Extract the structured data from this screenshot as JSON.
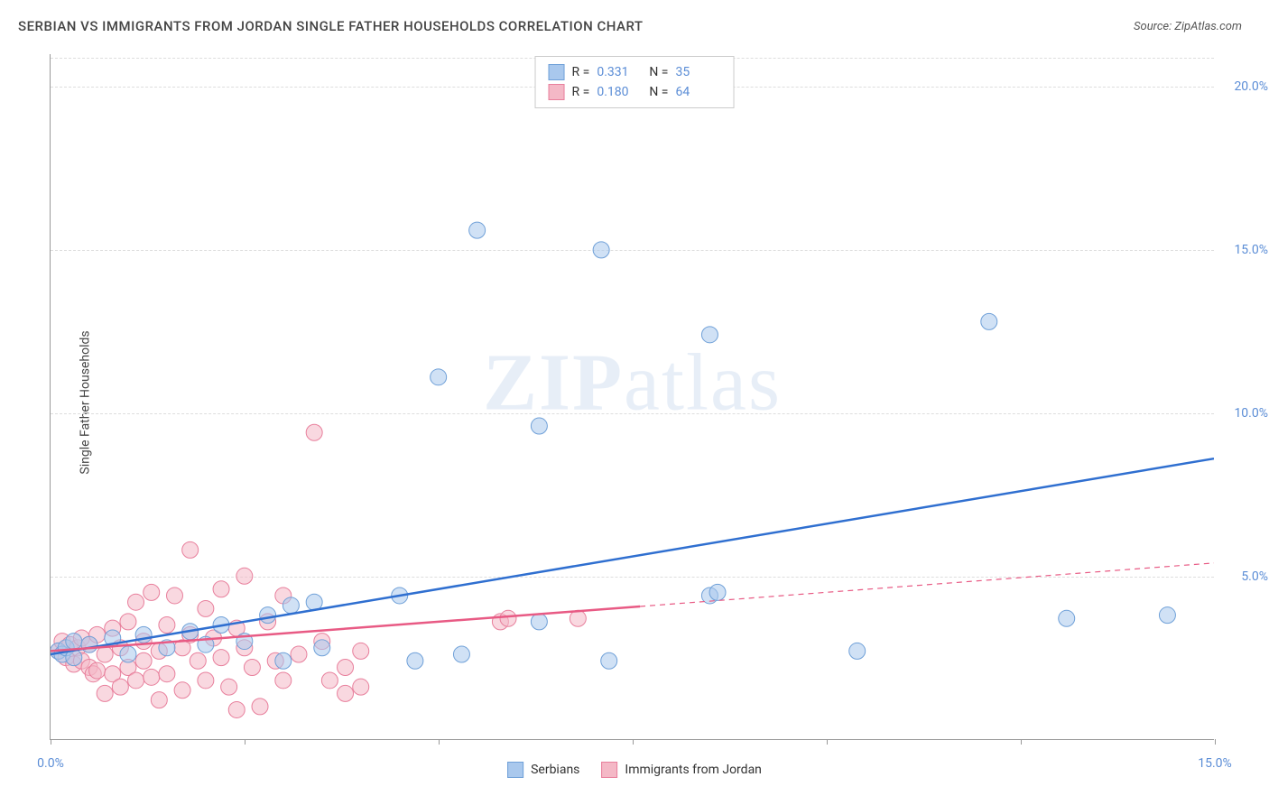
{
  "title": "SERBIAN VS IMMIGRANTS FROM JORDAN SINGLE FATHER HOUSEHOLDS CORRELATION CHART",
  "source_label": "Source: ZipAtlas.com",
  "y_axis_label": "Single Father Households",
  "watermark": {
    "bold": "ZIP",
    "light": "atlas"
  },
  "chart": {
    "type": "scatter",
    "background_color": "#ffffff",
    "grid_color": "#dddddd",
    "axis_color": "#999999",
    "xlim": [
      0,
      15
    ],
    "ylim": [
      0,
      21
    ],
    "x_ticks": [
      0,
      2.5,
      5,
      7.5,
      10,
      12.5,
      15
    ],
    "x_tick_labels": [
      "0.0%",
      "",
      "",
      "",
      "",
      "",
      "15.0%"
    ],
    "y_ticks": [
      5,
      10,
      15,
      20
    ],
    "y_tick_labels": [
      "5.0%",
      "10.0%",
      "15.0%",
      "20.0%"
    ],
    "marker_radius": 9,
    "marker_opacity": 0.55,
    "line_width": 2.5,
    "series": [
      {
        "name": "Serbians",
        "color_fill": "#a9c8ed",
        "color_stroke": "#6fa0d8",
        "line_color": "#2f6fd0",
        "r_value": "0.331",
        "n_value": "35",
        "regression": {
          "x1": 0,
          "y1": 2.6,
          "x2": 15,
          "y2": 8.6,
          "dashed_from": null
        },
        "points": [
          [
            0.1,
            2.7
          ],
          [
            0.15,
            2.6
          ],
          [
            0.2,
            2.8
          ],
          [
            0.3,
            2.5
          ],
          [
            0.3,
            3.0
          ],
          [
            0.5,
            2.9
          ],
          [
            0.8,
            3.1
          ],
          [
            1.0,
            2.6
          ],
          [
            1.2,
            3.2
          ],
          [
            1.5,
            2.8
          ],
          [
            1.8,
            3.3
          ],
          [
            2.0,
            2.9
          ],
          [
            2.2,
            3.5
          ],
          [
            2.5,
            3.0
          ],
          [
            2.8,
            3.8
          ],
          [
            3.0,
            2.4
          ],
          [
            3.1,
            4.1
          ],
          [
            3.4,
            4.2
          ],
          [
            3.5,
            2.8
          ],
          [
            4.5,
            4.4
          ],
          [
            4.7,
            2.4
          ],
          [
            5.0,
            11.1
          ],
          [
            5.3,
            2.6
          ],
          [
            5.5,
            15.6
          ],
          [
            6.3,
            3.6
          ],
          [
            6.3,
            9.6
          ],
          [
            7.1,
            15.0
          ],
          [
            7.2,
            2.4
          ],
          [
            8.5,
            12.4
          ],
          [
            8.5,
            4.4
          ],
          [
            8.6,
            4.5
          ],
          [
            10.4,
            2.7
          ],
          [
            12.1,
            12.8
          ],
          [
            13.1,
            3.7
          ],
          [
            14.4,
            3.8
          ]
        ]
      },
      {
        "name": "Immigrants from Jordan",
        "color_fill": "#f4b8c6",
        "color_stroke": "#e87f9c",
        "line_color": "#e85a84",
        "r_value": "0.180",
        "n_value": "64",
        "regression": {
          "x1": 0,
          "y1": 2.7,
          "x2": 15,
          "y2": 5.4,
          "dashed_from": 7.6
        },
        "points": [
          [
            0.1,
            2.7
          ],
          [
            0.15,
            3.0
          ],
          [
            0.2,
            2.5
          ],
          [
            0.25,
            2.9
          ],
          [
            0.3,
            2.3
          ],
          [
            0.35,
            2.8
          ],
          [
            0.4,
            2.4
          ],
          [
            0.4,
            3.1
          ],
          [
            0.5,
            2.2
          ],
          [
            0.5,
            2.9
          ],
          [
            0.55,
            2.0
          ],
          [
            0.6,
            3.2
          ],
          [
            0.6,
            2.1
          ],
          [
            0.7,
            2.6
          ],
          [
            0.7,
            1.4
          ],
          [
            0.8,
            3.4
          ],
          [
            0.8,
            2.0
          ],
          [
            0.9,
            2.8
          ],
          [
            0.9,
            1.6
          ],
          [
            1.0,
            3.6
          ],
          [
            1.0,
            2.2
          ],
          [
            1.1,
            4.2
          ],
          [
            1.1,
            1.8
          ],
          [
            1.2,
            3.0
          ],
          [
            1.2,
            2.4
          ],
          [
            1.3,
            4.5
          ],
          [
            1.3,
            1.9
          ],
          [
            1.4,
            2.7
          ],
          [
            1.4,
            1.2
          ],
          [
            1.5,
            3.5
          ],
          [
            1.5,
            2.0
          ],
          [
            1.6,
            4.4
          ],
          [
            1.7,
            2.8
          ],
          [
            1.7,
            1.5
          ],
          [
            1.8,
            3.2
          ],
          [
            1.8,
            5.8
          ],
          [
            1.9,
            2.4
          ],
          [
            2.0,
            4.0
          ],
          [
            2.0,
            1.8
          ],
          [
            2.1,
            3.1
          ],
          [
            2.2,
            2.5
          ],
          [
            2.2,
            4.6
          ],
          [
            2.3,
            1.6
          ],
          [
            2.4,
            3.4
          ],
          [
            2.4,
            0.9
          ],
          [
            2.5,
            2.8
          ],
          [
            2.5,
            5.0
          ],
          [
            2.6,
            2.2
          ],
          [
            2.7,
            1.0
          ],
          [
            2.8,
            3.6
          ],
          [
            2.9,
            2.4
          ],
          [
            3.0,
            4.4
          ],
          [
            3.0,
            1.8
          ],
          [
            3.2,
            2.6
          ],
          [
            3.4,
            9.4
          ],
          [
            3.5,
            3.0
          ],
          [
            3.6,
            1.8
          ],
          [
            3.8,
            2.2
          ],
          [
            3.8,
            1.4
          ],
          [
            4.0,
            2.7
          ],
          [
            4.0,
            1.6
          ],
          [
            5.8,
            3.6
          ],
          [
            5.9,
            3.7
          ],
          [
            6.8,
            3.7
          ]
        ]
      }
    ]
  },
  "legend_top": {
    "r_label": "R =",
    "n_label": "N ="
  },
  "legend_bottom": [
    {
      "label": "Serbians",
      "fill": "#a9c8ed",
      "stroke": "#6fa0d8"
    },
    {
      "label": "Immigrants from Jordan",
      "fill": "#f4b8c6",
      "stroke": "#e87f9c"
    }
  ]
}
